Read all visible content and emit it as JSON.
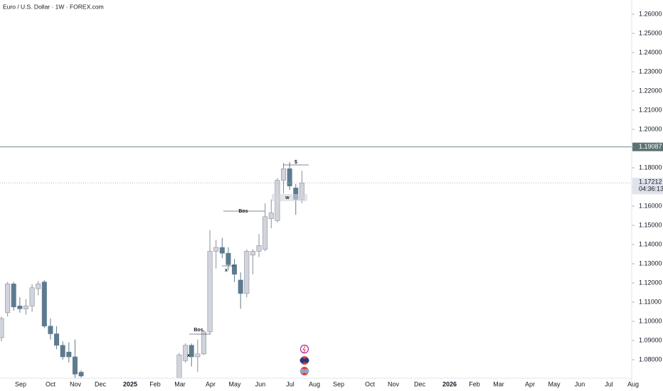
{
  "chart_data": {
    "type": "candlestick",
    "title": "Euro / U.S. Dollar · 1W · FOREX.com",
    "ylim": [
      1.07,
      1.265
    ],
    "yticks": [
      {
        "value": 1.08,
        "label": "1.08000"
      },
      {
        "value": 1.09,
        "label": "1.09000"
      },
      {
        "value": 1.1,
        "label": "1.10000"
      },
      {
        "value": 1.11,
        "label": "1.11000"
      },
      {
        "value": 1.12,
        "label": "1.12000"
      },
      {
        "value": 1.13,
        "label": "1.13000"
      },
      {
        "value": 1.14,
        "label": "1.14000"
      },
      {
        "value": 1.15,
        "label": "1.15000"
      },
      {
        "value": 1.16,
        "label": "1.16000"
      },
      {
        "value": 1.17,
        "label": "1.17000"
      },
      {
        "value": 1.18,
        "label": "1.18000"
      },
      {
        "value": 1.19,
        "label": "1.19000"
      },
      {
        "value": 1.2,
        "label": "1.20000"
      },
      {
        "value": 1.21,
        "label": "1.21000"
      },
      {
        "value": 1.22,
        "label": "1.22000"
      },
      {
        "value": 1.23,
        "label": "1.23000"
      },
      {
        "value": 1.24,
        "label": "1.24000"
      },
      {
        "value": 1.25,
        "label": "1.25000"
      },
      {
        "value": 1.26,
        "label": "1.26000"
      }
    ],
    "x_labels": [
      "Sep",
      "Oct",
      "Nov",
      "Dec",
      "2025",
      "Feb",
      "Mar",
      "Apr",
      "May",
      "Jun",
      "Jul",
      "Aug",
      "Sep",
      "Oct",
      "Nov",
      "Dec",
      "2026",
      "Feb",
      "Mar",
      "Apr",
      "May",
      "Jun",
      "Jul",
      "Aug"
    ],
    "up_color": "#d1d4dc",
    "down_color": "#5d7b8f",
    "open": [
      1.0915,
      1.1045,
      1.1195,
      1.108,
      1.1065,
      1.108,
      1.117,
      1.1205,
      1.0975,
      1.0935,
      1.0875,
      1.084,
      1.0815,
      1.0735,
      null,
      null,
      null,
      null,
      null,
      null,
      null,
      null,
      null,
      null,
      null,
      null,
      null,
      null,
      null,
      1.07,
      1.0795,
      1.0875,
      1.0815,
      1.083,
      1.0945,
      1.1365,
      1.1385,
      1.1355,
      1.1295,
      1.1215,
      1.1145,
      1.1345,
      1.1365,
      1.1375,
      1.1535,
      1.1525,
      1.1735,
      1.1795,
      1.1695,
      1.1635
    ],
    "high": [
      1.1025,
      1.1205,
      1.1205,
      1.1125,
      1.1115,
      1.1195,
      1.121,
      1.1215,
      1.1015,
      1.0975,
      1.0895,
      1.089,
      1.0905,
      1.0745,
      null,
      null,
      null,
      null,
      null,
      null,
      null,
      null,
      null,
      null,
      null,
      null,
      null,
      null,
      null,
      1.0835,
      1.0885,
      1.0885,
      1.0905,
      1.0955,
      1.1475,
      1.1425,
      1.1435,
      1.1385,
      1.1325,
      1.1255,
      1.1375,
      1.1375,
      1.1455,
      1.1615,
      1.1635,
      1.1745,
      1.1825,
      1.183,
      1.1715,
      1.1785
    ],
    "low": [
      1.0895,
      1.1025,
      1.1055,
      1.1045,
      1.1035,
      1.105,
      1.1135,
      1.0965,
      1.0905,
      1.0855,
      1.08,
      1.0785,
      1.0705,
      1.07,
      null,
      null,
      null,
      null,
      null,
      null,
      null,
      null,
      null,
      null,
      null,
      null,
      null,
      null,
      null,
      1.069,
      1.0785,
      1.0765,
      1.0735,
      1.0825,
      1.0935,
      1.1275,
      1.133,
      1.1265,
      1.1205,
      1.1065,
      1.1125,
      1.1245,
      1.1335,
      1.1365,
      1.1485,
      1.1515,
      1.1665,
      1.1685,
      1.1555,
      1.1615
    ],
    "close": [
      1.1015,
      1.1195,
      1.1075,
      1.1065,
      1.108,
      1.1175,
      1.1195,
      1.0975,
      1.0935,
      1.0875,
      1.0815,
      1.0815,
      1.0725,
      1.0715,
      null,
      null,
      null,
      null,
      null,
      null,
      null,
      null,
      null,
      null,
      null,
      null,
      null,
      null,
      null,
      1.0825,
      1.0875,
      1.0815,
      1.083,
      1.0945,
      1.1365,
      1.1385,
      1.1355,
      1.1295,
      1.1245,
      1.1145,
      1.1365,
      1.1365,
      1.1395,
      1.1545,
      1.1565,
      1.1735,
      1.1795,
      1.1705,
      1.1635,
      1.17212
    ],
    "level_line": 1.19087,
    "current_price": 1.17212,
    "countdown": "04:36:13",
    "annotations": [
      "Bos",
      "x",
      "Bos",
      "x",
      "$",
      "w"
    ]
  }
}
